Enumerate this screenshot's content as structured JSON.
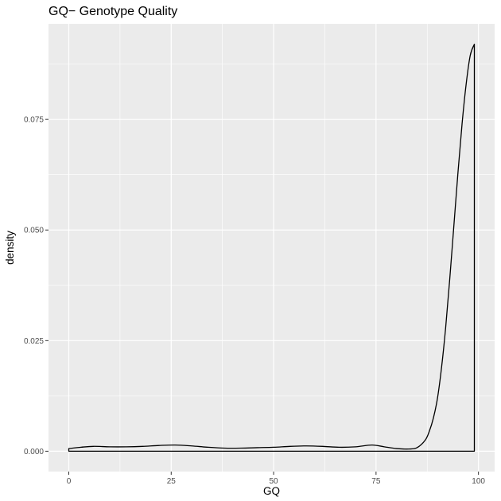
{
  "chart_data": {
    "type": "area",
    "title": "GQ− Genotype Quality",
    "xlabel": "GQ",
    "ylabel": "density",
    "xlim": [
      -4.95,
      103.95
    ],
    "ylim": [
      -0.0046,
      0.0966
    ],
    "x_ticks": [
      {
        "value": 0,
        "label": "0"
      },
      {
        "value": 25,
        "label": "25"
      },
      {
        "value": 50,
        "label": "50"
      },
      {
        "value": 75,
        "label": "75"
      },
      {
        "value": 100,
        "label": "100"
      }
    ],
    "y_ticks": [
      {
        "value": 0,
        "label": "0.000"
      },
      {
        "value": 0.025,
        "label": "0.025"
      },
      {
        "value": 0.05,
        "label": "0.050"
      },
      {
        "value": 0.075,
        "label": "0.075"
      }
    ],
    "grid": true,
    "series": [
      {
        "fill": "none",
        "stroke": "#000000",
        "x": [
          0,
          3,
          6,
          10,
          14,
          18,
          22,
          26,
          30,
          34,
          38,
          42,
          46,
          50,
          54,
          58,
          62,
          66,
          70,
          74,
          77,
          80,
          83,
          85,
          87,
          88,
          89,
          90,
          91,
          92,
          93,
          94,
          95,
          96,
          97,
          98,
          99
        ],
        "y": [
          0.0006,
          0.0009,
          0.0011,
          0.001,
          0.001,
          0.0011,
          0.0013,
          0.0014,
          0.0012,
          0.0009,
          0.0007,
          0.0007,
          0.0008,
          0.0009,
          0.0011,
          0.0012,
          0.0011,
          0.0009,
          0.001,
          0.0014,
          0.001,
          0.0006,
          0.0005,
          0.0008,
          0.0025,
          0.0045,
          0.0075,
          0.012,
          0.019,
          0.028,
          0.039,
          0.051,
          0.063,
          0.074,
          0.083,
          0.0895,
          0.092
        ]
      }
    ]
  }
}
